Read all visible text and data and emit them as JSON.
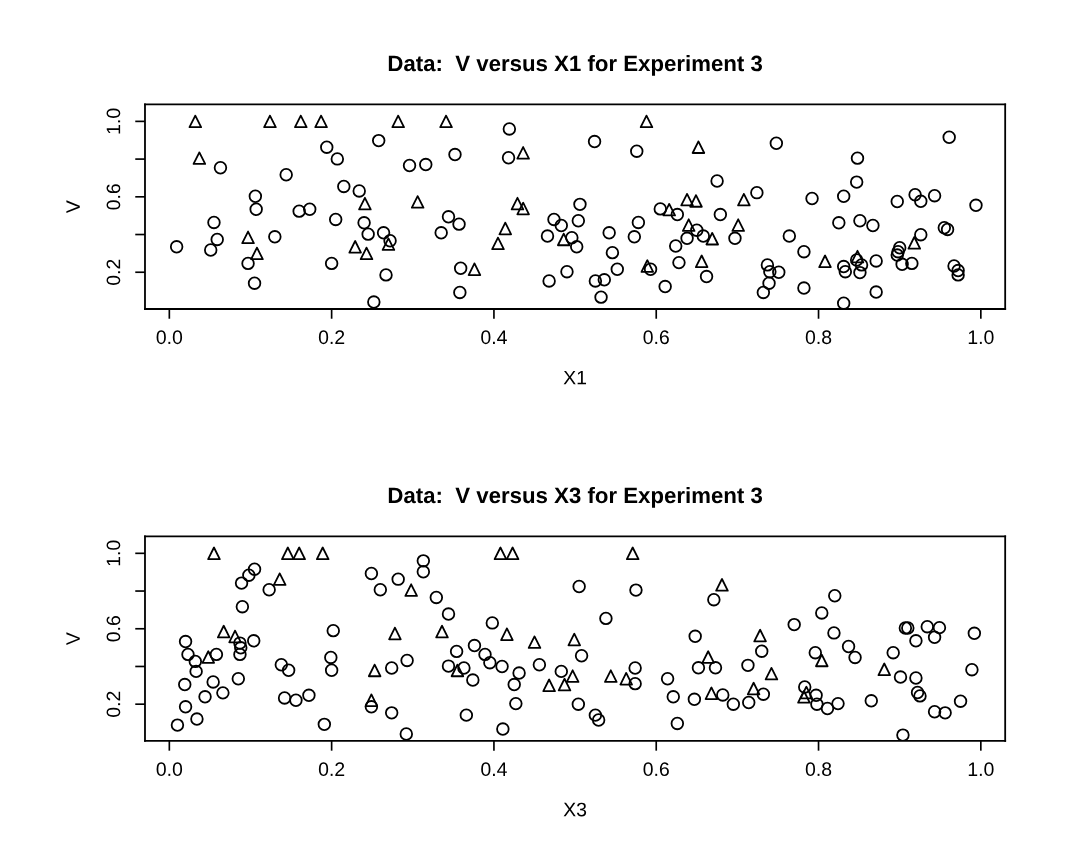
{
  "chart_data": [
    {
      "type": "scatter",
      "title": "Data:  V versus X1 for Experiment 3",
      "xlabel": "X1",
      "ylabel": "V",
      "xlim": [
        -0.03,
        1.03
      ],
      "ylim": [
        0.005,
        1.09
      ],
      "xticks": [
        {
          "value": 0,
          "label": "0.0"
        },
        {
          "value": 0.2,
          "label": "0.2"
        },
        {
          "value": 0.4,
          "label": "0.4"
        },
        {
          "value": 0.6,
          "label": "0.6"
        },
        {
          "value": 0.8,
          "label": "0.8"
        },
        {
          "value": 1,
          "label": "1.0"
        }
      ],
      "yticks": [
        {
          "value": 0.2,
          "label": "0.2"
        },
        {
          "value": 0.4,
          "label": null
        },
        {
          "value": 0.6,
          "label": "0.6"
        },
        {
          "value": 0.8,
          "label": null
        },
        {
          "value": 1,
          "label": "1.0"
        }
      ],
      "grid": false,
      "series": [
        {
          "color": "#000000",
          "marker": "circle",
          "x": [
            0.009,
            0.051,
            0.055,
            0.059,
            0.063,
            0.097,
            0.105,
            0.106,
            0.107,
            0.13,
            0.144,
            0.16,
            0.173,
            0.194,
            0.2,
            0.205,
            0.207,
            0.215,
            0.234,
            0.24,
            0.245,
            0.252,
            0.258,
            0.264,
            0.267,
            0.272,
            0.296,
            0.316,
            0.335,
            0.344,
            0.352,
            0.357,
            0.359,
            0.358,
            0.419,
            0.418,
            0.466,
            0.468,
            0.474,
            0.483,
            0.49,
            0.496,
            0.502,
            0.504,
            0.506,
            0.524,
            0.525,
            0.532,
            0.536,
            0.542,
            0.546,
            0.552,
            0.573,
            0.576,
            0.578,
            0.593,
            0.605,
            0.611,
            0.624,
            0.626,
            0.628,
            0.638,
            0.65,
            0.658,
            0.662,
            0.675,
            0.679,
            0.697,
            0.724,
            0.737,
            0.739,
            0.74,
            0.751,
            0.732,
            0.748,
            0.764,
            0.782,
            0.782,
            0.792,
            0.825,
            0.831,
            0.831,
            0.833,
            0.831,
            0.848,
            0.847,
            0.851,
            0.847,
            0.851,
            0.853,
            0.867,
            0.871,
            0.871,
            0.897,
            0.898,
            0.897,
            0.9,
            0.903,
            0.915,
            0.919,
            0.926,
            0.926,
            0.943,
            0.955,
            0.959,
            0.961,
            0.967,
            0.972,
            0.972,
            0.994
          ],
          "values": [
            0.335,
            0.318,
            0.464,
            0.374,
            0.754,
            0.247,
            0.142,
            0.603,
            0.534,
            0.388,
            0.717,
            0.524,
            0.534,
            0.863,
            0.247,
            0.48,
            0.801,
            0.655,
            0.631,
            0.462,
            0.402,
            0.042,
            0.898,
            0.409,
            0.186,
            0.367,
            0.766,
            0.771,
            0.409,
            0.494,
            0.824,
            0.455,
            0.221,
            0.093,
            0.96,
            0.807,
            0.392,
            0.154,
            0.48,
            0.448,
            0.203,
            0.383,
            0.335,
            0.473,
            0.56,
            0.893,
            0.154,
            0.068,
            0.16,
            0.409,
            0.304,
            0.216,
            0.388,
            0.842,
            0.464,
            0.216,
            0.536,
            0.124,
            0.339,
            0.506,
            0.251,
            0.38,
            0.423,
            0.392,
            0.177,
            0.684,
            0.506,
            0.38,
            0.622,
            0.239,
            0.142,
            0.203,
            0.2,
            0.093,
            0.884,
            0.392,
            0.309,
            0.116,
            0.591,
            0.462,
            0.603,
            0.23,
            0.203,
            0.036,
            0.805,
            0.678,
            0.473,
            0.265,
            0.198,
            0.239,
            0.448,
            0.26,
            0.095,
            0.575,
            0.309,
            0.291,
            0.33,
            0.242,
            0.247,
            0.611,
            0.576,
            0.399,
            0.606,
            0.436,
            0.427,
            0.916,
            0.233,
            0.209,
            0.186,
            0.555
          ]
        },
        {
          "color": "#000000",
          "marker": "triangle",
          "x": [
            0.032,
            0.037,
            0.124,
            0.162,
            0.187,
            0.282,
            0.341,
            0.436,
            0.306,
            0.241,
            0.429,
            0.436,
            0.414,
            0.097,
            0.108,
            0.229,
            0.243,
            0.27,
            0.405,
            0.376,
            0.486,
            0.589,
            0.588,
            0.652,
            0.616,
            0.638,
            0.649,
            0.64,
            0.669,
            0.656,
            0.701,
            0.708,
            0.808,
            0.848,
            0.918
          ],
          "values": [
            1.0,
            0.805,
            1.0,
            1.0,
            1.0,
            1.0,
            1.0,
            0.833,
            0.573,
            0.564,
            0.564,
            0.538,
            0.432,
            0.385,
            0.3,
            0.335,
            0.3,
            0.349,
            0.353,
            0.216,
            0.374,
            0.233,
            1.0,
            0.863,
            0.532,
            0.585,
            0.578,
            0.45,
            0.378,
            0.258,
            0.45,
            0.585,
            0.258,
            0.283,
            0.356
          ]
        }
      ]
    },
    {
      "type": "scatter",
      "title": "Data:  V versus X3 for Experiment 3",
      "xlabel": "X3",
      "ylabel": "V",
      "xlim": [
        -0.03,
        1.03
      ],
      "ylim": [
        0.005,
        1.09
      ],
      "xticks": [
        {
          "value": 0,
          "label": "0.0"
        },
        {
          "value": 0.2,
          "label": "0.2"
        },
        {
          "value": 0.4,
          "label": "0.4"
        },
        {
          "value": 0.6,
          "label": "0.6"
        },
        {
          "value": 0.8,
          "label": "0.8"
        },
        {
          "value": 1,
          "label": "1.0"
        }
      ],
      "yticks": [
        {
          "value": 0.2,
          "label": "0.2"
        },
        {
          "value": 0.4,
          "label": null
        },
        {
          "value": 0.6,
          "label": "0.6"
        },
        {
          "value": 0.8,
          "label": null
        },
        {
          "value": 1,
          "label": "1.0"
        }
      ],
      "grid": false,
      "series": [
        {
          "color": "#000000",
          "marker": "circle",
          "x": [
            0.01,
            0.02,
            0.023,
            0.019,
            0.02,
            0.032,
            0.033,
            0.034,
            0.044,
            0.054,
            0.058,
            0.066,
            0.085,
            0.087,
            0.088,
            0.087,
            0.09,
            0.089,
            0.098,
            0.105,
            0.104,
            0.123,
            0.138,
            0.147,
            0.142,
            0.156,
            0.172,
            0.191,
            0.199,
            0.2,
            0.202,
            0.249,
            0.249,
            0.26,
            0.274,
            0.274,
            0.282,
            0.293,
            0.292,
            0.313,
            0.313,
            0.329,
            0.344,
            0.344,
            0.354,
            0.363,
            0.366,
            0.374,
            0.376,
            0.389,
            0.395,
            0.398,
            0.41,
            0.411,
            0.425,
            0.427,
            0.431,
            0.456,
            0.483,
            0.504,
            0.505,
            0.508,
            0.525,
            0.529,
            0.538,
            0.574,
            0.574,
            0.575,
            0.614,
            0.621,
            0.626,
            0.648,
            0.647,
            0.652,
            0.671,
            0.673,
            0.682,
            0.695,
            0.713,
            0.714,
            0.73,
            0.732,
            0.77,
            0.783,
            0.796,
            0.797,
            0.798,
            0.804,
            0.811,
            0.819,
            0.82,
            0.824,
            0.837,
            0.845,
            0.865,
            0.892,
            0.901,
            0.904,
            0.907,
            0.91,
            0.92,
            0.92,
            0.922,
            0.925,
            0.934,
            0.943,
            0.949,
            0.943,
            0.956,
            0.975,
            0.989,
            0.992
          ],
          "values": [
            0.089,
            0.532,
            0.464,
            0.304,
            0.186,
            0.427,
            0.374,
            0.121,
            0.239,
            0.318,
            0.464,
            0.26,
            0.335,
            0.464,
            0.499,
            0.524,
            0.717,
            0.842,
            0.884,
            0.916,
            0.536,
            0.807,
            0.409,
            0.38,
            0.233,
            0.221,
            0.247,
            0.093,
            0.448,
            0.38,
            0.59,
            0.893,
            0.186,
            0.807,
            0.392,
            0.154,
            0.863,
            0.432,
            0.042,
            0.96,
            0.902,
            0.766,
            0.678,
            0.402,
            0.48,
            0.392,
            0.142,
            0.328,
            0.511,
            0.464,
            0.42,
            0.631,
            0.4,
            0.068,
            0.304,
            0.203,
            0.365,
            0.409,
            0.374,
            0.2,
            0.824,
            0.457,
            0.142,
            0.116,
            0.655,
            0.392,
            0.309,
            0.805,
            0.335,
            0.239,
            0.098,
            0.56,
            0.226,
            0.393,
            0.754,
            0.393,
            0.249,
            0.2,
            0.406,
            0.209,
            0.481,
            0.253,
            0.622,
            0.291,
            0.473,
            0.247,
            0.2,
            0.684,
            0.177,
            0.578,
            0.775,
            0.203,
            0.506,
            0.448,
            0.218,
            0.473,
            0.344,
            0.036,
            0.604,
            0.604,
            0.339,
            0.536,
            0.262,
            0.244,
            0.611,
            0.555,
            0.606,
            0.16,
            0.154,
            0.216,
            0.383,
            0.576
          ]
        },
        {
          "color": "#000000",
          "marker": "triangle",
          "x": [
            0.055,
            0.146,
            0.16,
            0.189,
            0.408,
            0.423,
            0.136,
            0.298,
            0.067,
            0.081,
            0.048,
            0.278,
            0.336,
            0.416,
            0.45,
            0.253,
            0.249,
            0.355,
            0.468,
            0.487,
            0.497,
            0.499,
            0.544,
            0.563,
            0.571,
            0.668,
            0.664,
            0.681,
            0.72,
            0.728,
            0.742,
            0.782,
            0.785,
            0.804,
            0.881
          ],
          "values": [
            1.0,
            1.0,
            1.0,
            1.0,
            1.0,
            1.0,
            0.863,
            0.805,
            0.585,
            0.559,
            0.45,
            0.575,
            0.585,
            0.571,
            0.529,
            0.379,
            0.221,
            0.379,
            0.3,
            0.304,
            0.349,
            0.543,
            0.349,
            0.335,
            1.0,
            0.258,
            0.45,
            0.833,
            0.283,
            0.564,
            0.362,
            0.239,
            0.262,
            0.432,
            0.385
          ]
        }
      ]
    }
  ]
}
